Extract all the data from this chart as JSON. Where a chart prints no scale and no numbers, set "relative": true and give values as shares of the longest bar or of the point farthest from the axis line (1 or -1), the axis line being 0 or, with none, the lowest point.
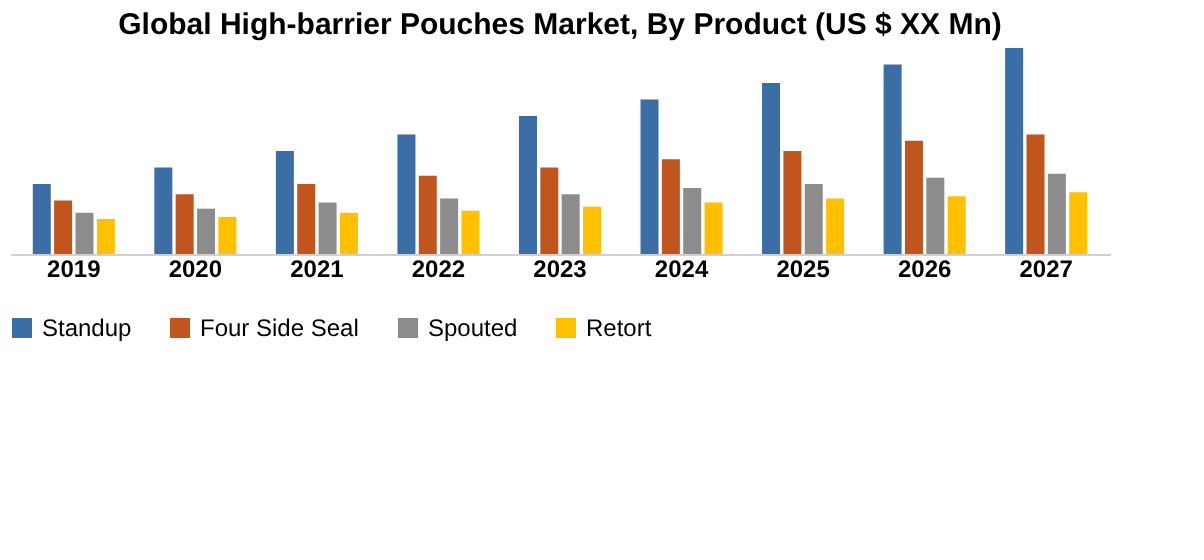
{
  "chart_data": {
    "type": "bar",
    "title": "Global High-barrier Pouches Market, By Product (US $ XX Mn)",
    "categories": [
      "2019",
      "2020",
      "2021",
      "2022",
      "2023",
      "2024",
      "2025",
      "2026",
      "2027"
    ],
    "relative": true,
    "legend": "bottom",
    "grid": false,
    "series": [
      {
        "name": "Standup",
        "color": "#3a6ea5",
        "values": [
          0.34,
          0.42,
          0.5,
          0.58,
          0.67,
          0.75,
          0.83,
          0.92,
          1
        ]
      },
      {
        "name": "Four Side Seal",
        "color": "#c0561e",
        "values": [
          0.26,
          0.29,
          0.34,
          0.38,
          0.42,
          0.46,
          0.5,
          0.55,
          0.58
        ]
      },
      {
        "name": "Spouted",
        "color": "#8c8c8c",
        "values": [
          0.2,
          0.22,
          0.25,
          0.27,
          0.29,
          0.32,
          0.34,
          0.37,
          0.39
        ]
      },
      {
        "name": "Retort",
        "color": "#ffc000",
        "values": [
          0.17,
          0.18,
          0.2,
          0.21,
          0.23,
          0.25,
          0.27,
          0.28,
          0.3
        ]
      }
    ]
  }
}
